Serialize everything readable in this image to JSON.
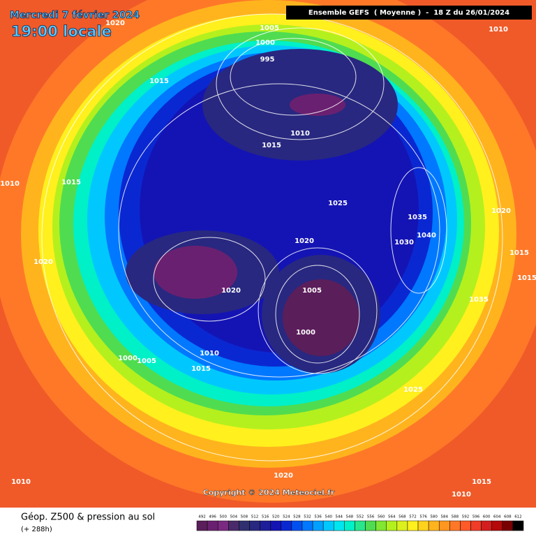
{
  "header": {
    "date": "Mercredi 7 février 2024",
    "time": "19:00 locale",
    "run": "Ensemble GEFS  ( Moyenne )  -  18 Z du 26/01/2024"
  },
  "map": {
    "isobar_labels": [
      1020,
      1005,
      1010,
      1000,
      995,
      1015,
      1010,
      1015,
      1010,
      1015,
      1025,
      1020,
      1035,
      1040,
      1030,
      1020,
      1015,
      1020,
      1015,
      1005,
      1020,
      1035,
      1000,
      1010,
      1000,
      1005,
      1015,
      1025,
      1010,
      1020,
      1015,
      1010
    ],
    "copyright": "Copyright © 2024 Meteociel.fr"
  },
  "footer": {
    "title": "Géop. Z500 & pression au sol",
    "lead": "(+ 288h)"
  },
  "scale": {
    "values": [
      492,
      496,
      500,
      504,
      508,
      512,
      516,
      520,
      524,
      528,
      532,
      536,
      540,
      544,
      548,
      552,
      556,
      560,
      564,
      568,
      572,
      576,
      580,
      584,
      588,
      592,
      596,
      600,
      604,
      608,
      612
    ],
    "colors": [
      "#5a1e5a",
      "#6a2070",
      "#7a2a80",
      "#4a2a6a",
      "#303070",
      "#282880",
      "#1e1e9a",
      "#1414b4",
      "#0a28d2",
      "#0050f0",
      "#0078ff",
      "#00a0ff",
      "#00c8ff",
      "#00e6f0",
      "#00f0c8",
      "#28e68c",
      "#50dc50",
      "#82e632",
      "#b4f01e",
      "#dcf01e",
      "#fff01e",
      "#ffd21e",
      "#ffb41e",
      "#ff961e",
      "#ff7828",
      "#ff5a28",
      "#f03c28",
      "#d21e1e",
      "#b40a0a",
      "#780000",
      "#000000"
    ]
  }
}
